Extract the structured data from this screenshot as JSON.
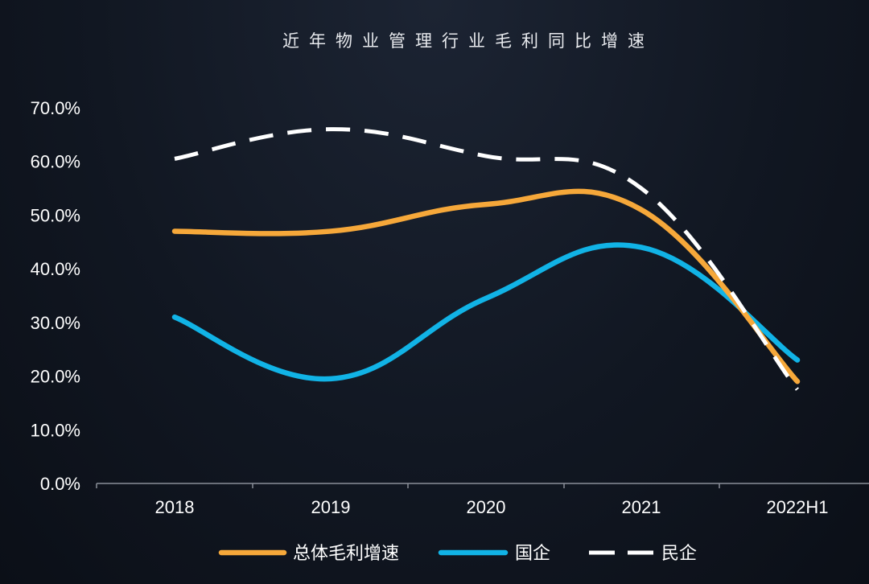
{
  "chart_data": {
    "type": "line",
    "title": "近年物业管理行业毛利同比增速",
    "xlabel": "",
    "ylabel": "",
    "categories": [
      "2018",
      "2019",
      "2020",
      "2021",
      "2022H1"
    ],
    "series": [
      {
        "name": "总体毛利增速",
        "values": [
          47.0,
          47.0,
          52.0,
          51.0,
          19.0
        ],
        "color": "#f6a83a",
        "dash": false
      },
      {
        "name": "国企",
        "values": [
          31.0,
          19.5,
          34.5,
          44.0,
          23.0
        ],
        "color": "#11b3e6",
        "dash": false
      },
      {
        "name": "民企",
        "values": [
          60.5,
          66.0,
          61.0,
          55.0,
          17.5
        ],
        "color": "#ffffff",
        "dash": true
      }
    ],
    "ylim": [
      0,
      70
    ],
    "yticks": [
      "0.0%",
      "10.0%",
      "20.0%",
      "30.0%",
      "40.0%",
      "50.0%",
      "60.0%",
      "70.0%"
    ],
    "grid": false,
    "legend": "bottom-center"
  }
}
